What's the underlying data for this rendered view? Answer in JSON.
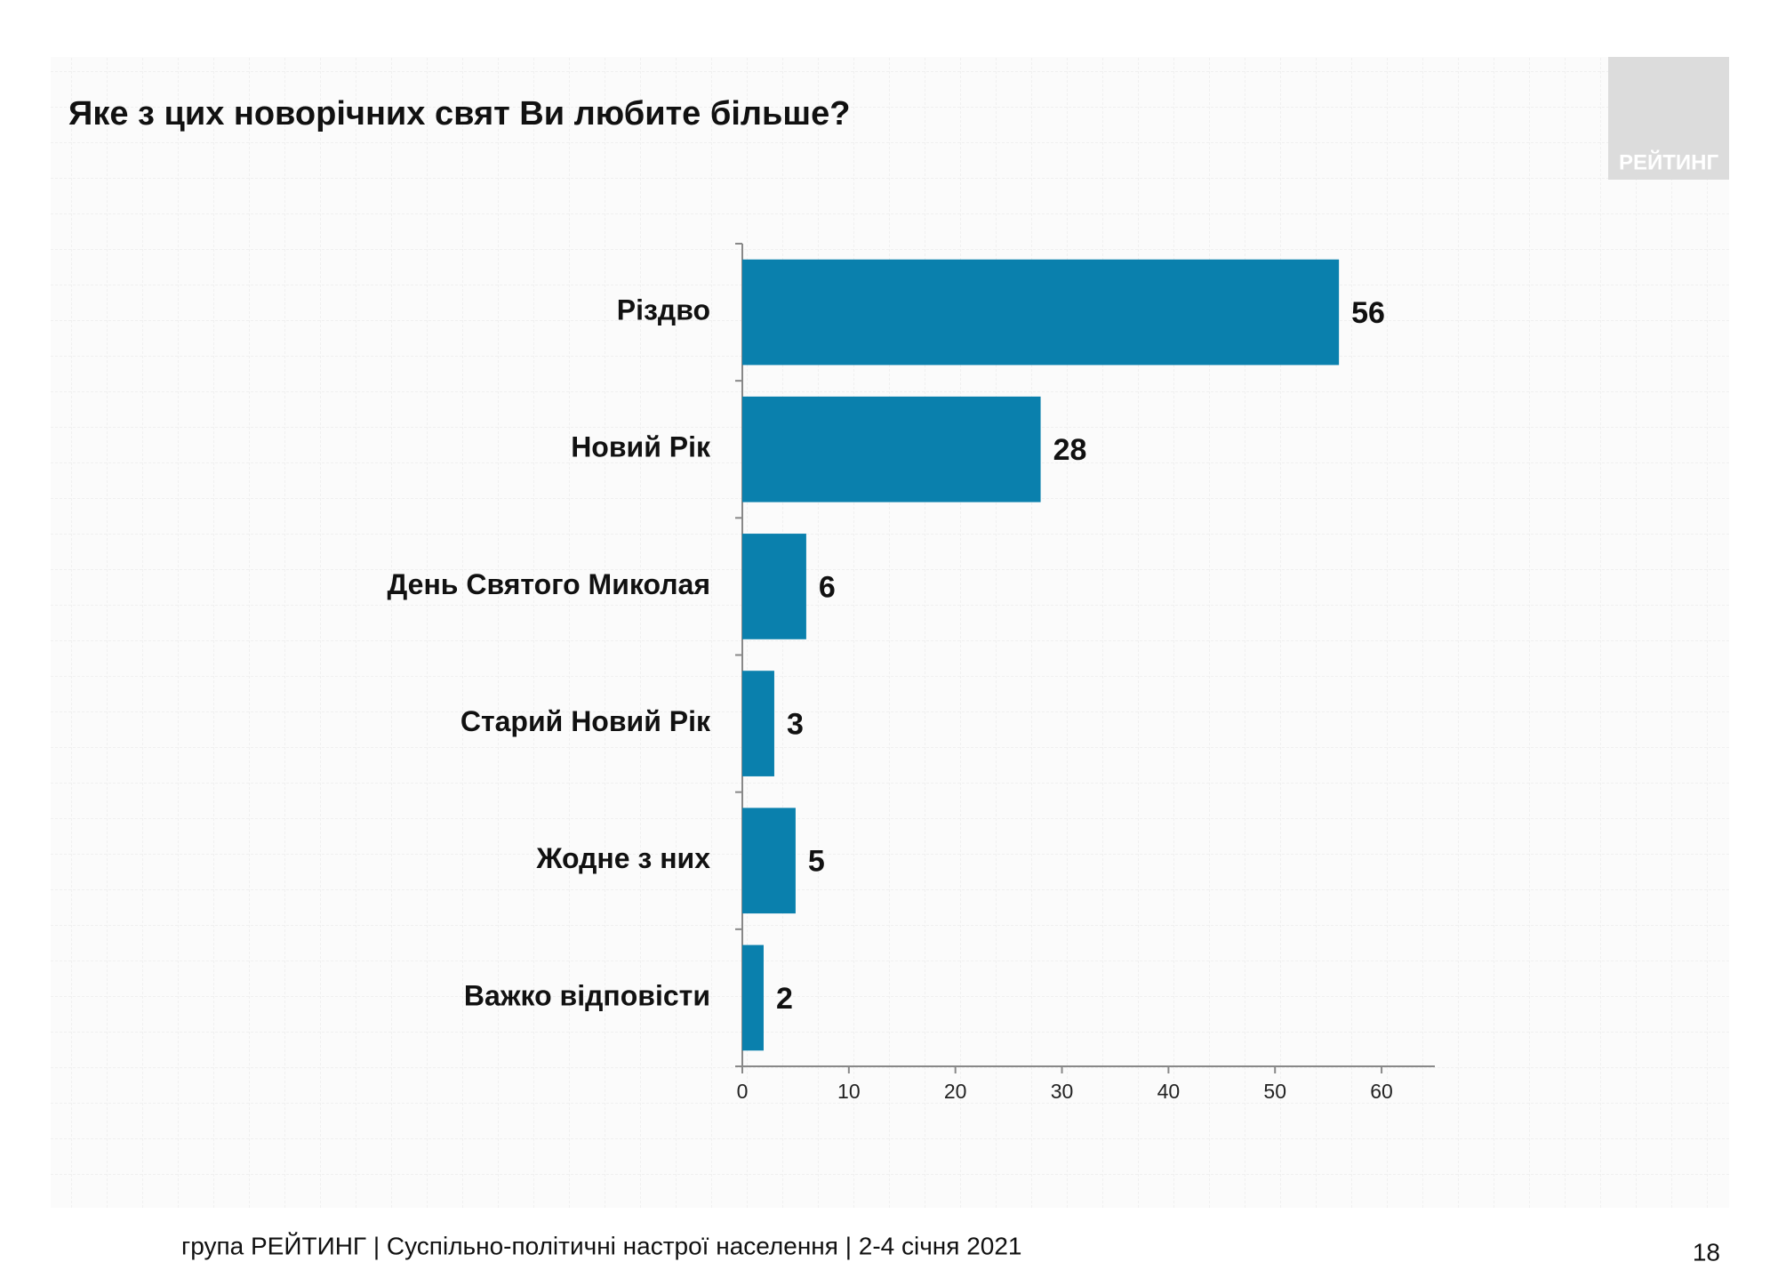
{
  "chart_data": {
    "type": "bar",
    "orientation": "horizontal",
    "title": "Яке з цих новорічних свят Ви любите більше?",
    "categories": [
      "Різдво",
      "Новий Рік",
      "День Святого Миколая",
      "Старий Новий Рік",
      "Жодне з них",
      "Важко відповісти"
    ],
    "values": [
      56,
      28,
      6,
      3,
      5,
      2
    ],
    "color": "#0a80ad",
    "xlim": [
      0,
      65
    ],
    "xticks": [
      0,
      10,
      20,
      30,
      40,
      50,
      60
    ]
  },
  "logo": "РЕЙТИНГ",
  "footer": "група РЕЙТИНГ | Суспільно-політичні настрої населення  | 2-4 січня 2021",
  "page_number": "18"
}
